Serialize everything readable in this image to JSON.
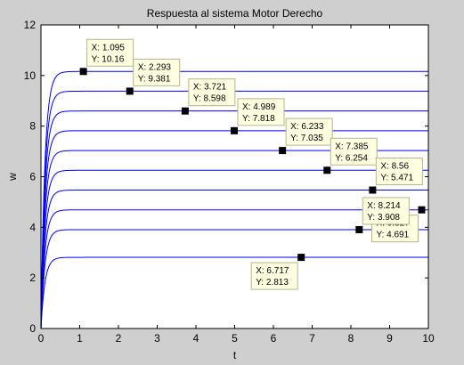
{
  "chart_data": {
    "type": "line",
    "title": "Respuesta al sistema Motor Derecho",
    "xlabel": "t",
    "ylabel": "w",
    "xlim": [
      0,
      10
    ],
    "ylim": [
      0,
      12
    ],
    "xticks": [
      "0",
      "1",
      "2",
      "3",
      "4",
      "5",
      "6",
      "7",
      "8",
      "9",
      "10"
    ],
    "yticks": [
      "0",
      "2",
      "4",
      "6",
      "8",
      "10",
      "12"
    ],
    "grid": false,
    "legend": "none",
    "series_style": {
      "color": "#0000ff",
      "time_constant": 0.1
    },
    "series": [
      {
        "final_value": 10.16
      },
      {
        "final_value": 9.381
      },
      {
        "final_value": 8.598
      },
      {
        "final_value": 7.818
      },
      {
        "final_value": 7.035
      },
      {
        "final_value": 6.254
      },
      {
        "final_value": 5.471
      },
      {
        "final_value": 4.691
      },
      {
        "final_value": 3.908
      },
      {
        "final_value": 2.813
      }
    ],
    "datatips": [
      {
        "x": 1.095,
        "y": 10.16,
        "label_x": "X: 1.095",
        "label_y": "Y: 10.16",
        "placement": "above-right"
      },
      {
        "x": 2.293,
        "y": 9.381,
        "label_x": "X: 2.293",
        "label_y": "Y: 9.381",
        "placement": "above-right"
      },
      {
        "x": 3.721,
        "y": 8.598,
        "label_x": "X: 3.721",
        "label_y": "Y: 8.598",
        "placement": "above-right"
      },
      {
        "x": 4.989,
        "y": 7.818,
        "label_x": "X: 4.989",
        "label_y": "Y: 7.818",
        "placement": "above-right"
      },
      {
        "x": 6.233,
        "y": 7.035,
        "label_x": "X: 6.233",
        "label_y": "Y: 7.035",
        "placement": "above-right"
      },
      {
        "x": 7.385,
        "y": 6.254,
        "label_x": "X: 7.385",
        "label_y": "Y: 6.254",
        "placement": "above-right"
      },
      {
        "x": 8.56,
        "y": 5.471,
        "label_x": "X: 8.56",
        "label_y": "Y: 5.471",
        "placement": "above-right"
      },
      {
        "x": 9.827,
        "y": 4.691,
        "label_x": "X: 9.827",
        "label_y": "Y: 4.691",
        "placement": "below-left"
      },
      {
        "x": 8.214,
        "y": 3.908,
        "label_x": "X: 8.214",
        "label_y": "Y: 3.908",
        "placement": "above-right"
      },
      {
        "x": 6.717,
        "y": 2.813,
        "label_x": "X: 6.717",
        "label_y": "Y: 2.813",
        "placement": "below-left"
      }
    ],
    "colors": {
      "figure_background": "#cfcfcf",
      "axes_background": "#ffffff",
      "line": "#0000ff",
      "marker": "#000000",
      "datatip_fill": "#ffffe1",
      "datatip_border": "#b5b58c"
    }
  }
}
